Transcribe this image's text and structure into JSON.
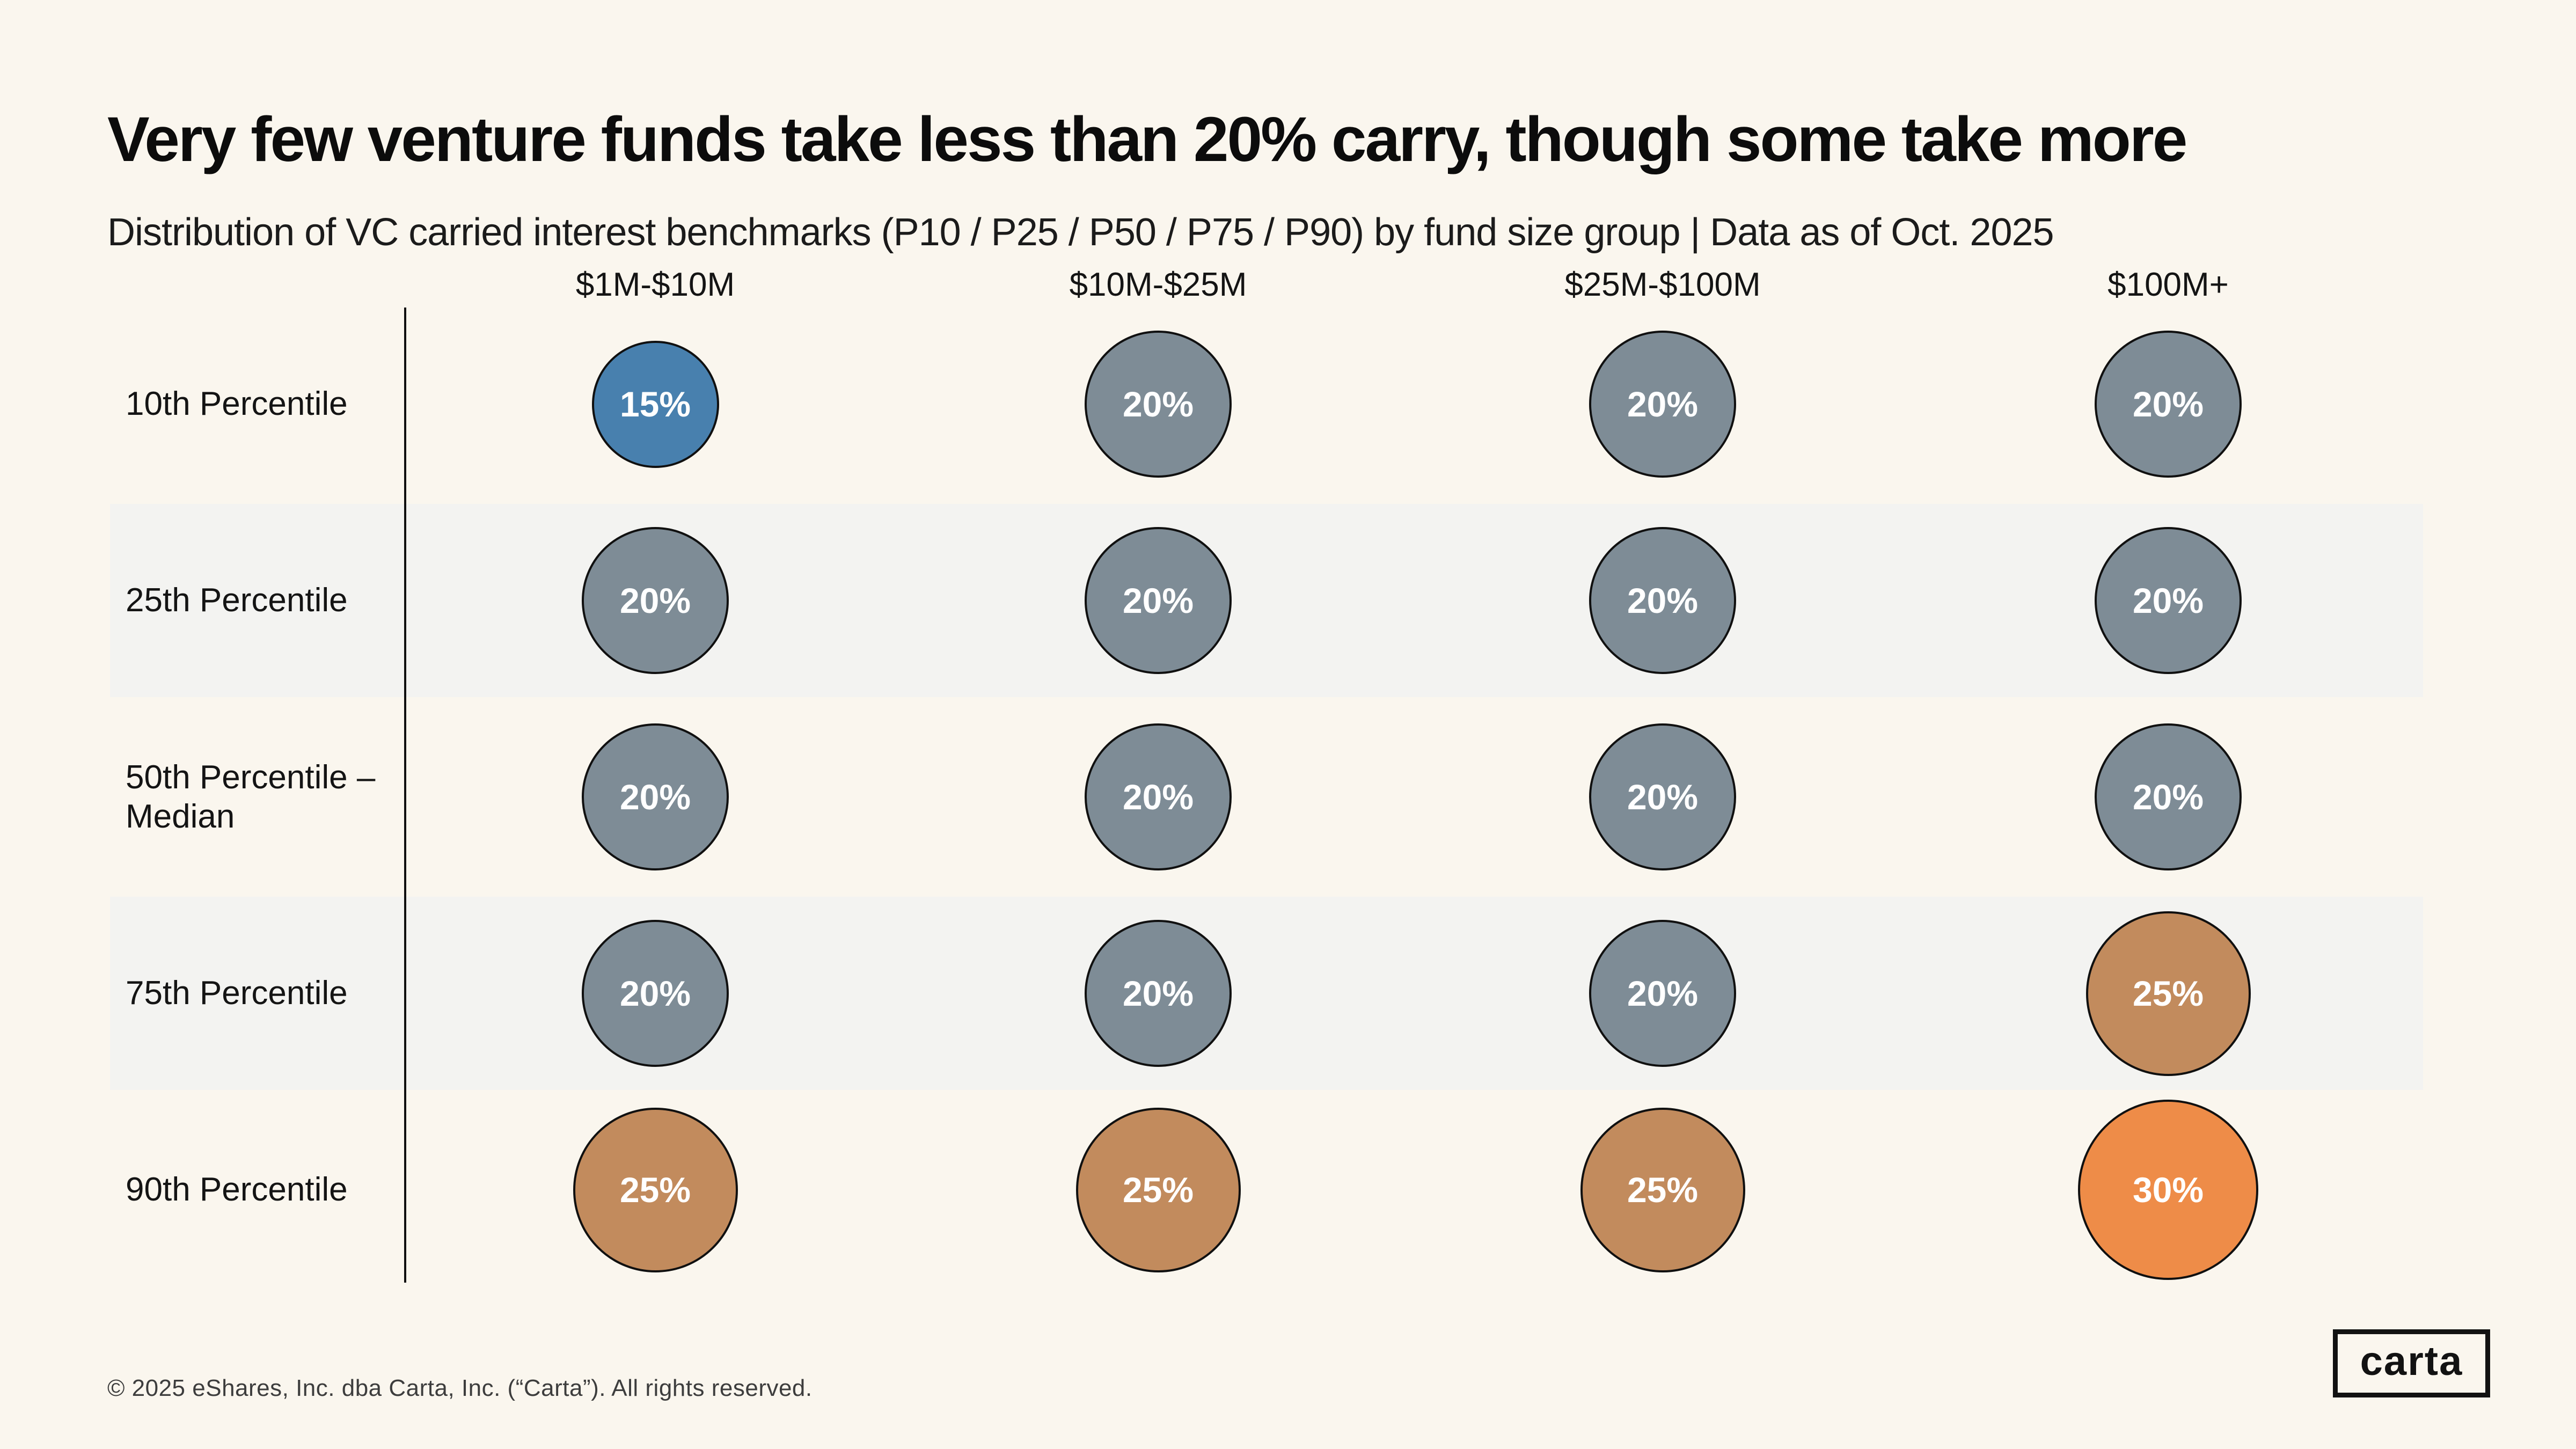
{
  "header": {
    "title": "Very few venture funds take less than 20% carry, though some take more",
    "subtitle": "Distribution of VC carried interest benchmarks (P10 / P25 / P50 / P75 / P90) by fund size group | Data as of Oct. 2025"
  },
  "grid": {
    "columns": [
      "$1M-$10M",
      "$10M-$25M",
      "$25M-$100M",
      "$100M+"
    ],
    "value_suffix": "%",
    "rows": [
      {
        "label": "10th Percentile",
        "banded": false,
        "values": [
          15,
          20,
          20,
          20
        ]
      },
      {
        "label": "25th Percentile",
        "banded": true,
        "values": [
          20,
          20,
          20,
          20
        ]
      },
      {
        "label": "50th Percentile –\nMedian",
        "banded": false,
        "values": [
          20,
          20,
          20,
          20
        ]
      },
      {
        "label": "75th Percentile",
        "banded": true,
        "values": [
          20,
          20,
          20,
          25
        ]
      },
      {
        "label": "90th Percentile",
        "banded": false,
        "values": [
          25,
          25,
          25,
          30
        ]
      }
    ]
  },
  "palette": {
    "p15": "#4880AE",
    "p20": "#7E8C96",
    "p25": "#C28B5D",
    "p30": "#EE8C48",
    "bubble_border": "#101010",
    "band": "#F3F3F1",
    "background": "#FAF6EE",
    "divider": "#101010"
  },
  "footer": {
    "copyright": "© 2025 eShares, Inc. dba Carta, Inc. (“Carta”). All rights reserved.",
    "logo_text": "carta"
  },
  "chart_data": {
    "type": "table",
    "title": "Very few venture funds take less than 20% carry, though some take more",
    "subtitle": "Distribution of VC carried interest benchmarks (P10 / P25 / P50 / P75 / P90) by fund size group | Data as of Oct. 2025",
    "columns": [
      "$1M-$10M",
      "$10M-$25M",
      "$25M-$100M",
      "$100M+"
    ],
    "rows": [
      "10th Percentile",
      "25th Percentile",
      "50th Percentile – Median",
      "75th Percentile",
      "90th Percentile"
    ],
    "values_percent": [
      [
        15,
        20,
        20,
        20
      ],
      [
        20,
        20,
        20,
        20
      ],
      [
        20,
        20,
        20,
        20
      ],
      [
        20,
        20,
        20,
        25
      ],
      [
        25,
        25,
        25,
        30
      ]
    ],
    "encoding": "bubble size proportional to sqrt(value); color by value: 15%=blue, 20%=slate gray, 25%=tan, 30%=orange",
    "legend": "none",
    "grid": "alternating row bands on 25th and 75th percentile rows"
  }
}
